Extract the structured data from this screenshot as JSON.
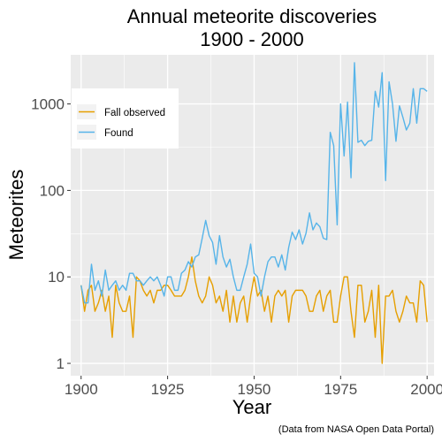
{
  "chart_data": {
    "type": "line",
    "title_line1": "Annual meteorite discoveries",
    "title_line2": "1900 - 2000",
    "xlabel": "Year",
    "ylabel": "Meteorites",
    "caption": "(Data from NASA Open Data Portal)",
    "xlim": [
      1897,
      2002
    ],
    "ylim": [
      0.72,
      3700
    ],
    "y_scale": "log10",
    "x_ticks": [
      1900,
      1925,
      1950,
      1975,
      2000
    ],
    "x_tick_labels": [
      "1900",
      "1925",
      "1950",
      "1975",
      "2000"
    ],
    "y_ticks": [
      1,
      10,
      100,
      1000
    ],
    "y_tick_labels": [
      "1",
      "10",
      "100",
      "1000"
    ],
    "grid": true,
    "panel_background": "#ebebeb",
    "legend": {
      "placement": "top-left"
    },
    "x": [
      1900,
      1901,
      1902,
      1903,
      1904,
      1905,
      1906,
      1907,
      1908,
      1909,
      1910,
      1911,
      1912,
      1913,
      1914,
      1915,
      1916,
      1917,
      1918,
      1919,
      1920,
      1921,
      1922,
      1923,
      1924,
      1925,
      1926,
      1927,
      1928,
      1929,
      1930,
      1931,
      1932,
      1933,
      1934,
      1935,
      1936,
      1937,
      1938,
      1939,
      1940,
      1941,
      1942,
      1943,
      1944,
      1945,
      1946,
      1947,
      1948,
      1949,
      1950,
      1951,
      1952,
      1953,
      1954,
      1955,
      1956,
      1957,
      1958,
      1959,
      1960,
      1961,
      1962,
      1963,
      1964,
      1965,
      1966,
      1967,
      1968,
      1969,
      1970,
      1971,
      1972,
      1973,
      1974,
      1975,
      1976,
      1977,
      1978,
      1979,
      1980,
      1981,
      1982,
      1983,
      1984,
      1985,
      1986,
      1987,
      1988,
      1989,
      1990,
      1991,
      1992,
      1993,
      1994,
      1995,
      1996,
      1997,
      1998,
      1999,
      2000
    ],
    "series": [
      {
        "name": "Fall observed",
        "color": "#e69f00",
        "values": [
          8,
          4,
          7,
          8,
          4,
          5,
          7,
          4,
          6,
          2,
          8,
          5,
          4,
          4,
          6,
          2,
          10,
          9,
          7,
          6,
          7,
          5,
          7,
          7,
          8,
          8,
          7,
          6,
          6,
          6,
          7,
          10,
          17,
          9,
          6,
          5,
          6,
          10,
          8,
          5,
          6,
          4,
          7,
          3,
          6,
          3,
          5,
          6,
          3,
          6,
          10,
          6,
          7,
          4,
          6,
          3,
          6,
          7,
          6,
          7,
          3,
          6,
          7,
          7,
          7,
          6,
          4,
          4,
          6,
          7,
          4,
          6,
          7,
          3,
          3,
          6,
          10,
          10,
          4,
          2,
          8,
          8,
          3,
          4,
          7,
          2,
          8,
          1,
          6,
          6,
          7,
          4,
          3,
          4,
          6,
          5,
          5,
          3,
          9,
          8,
          3
        ]
      },
      {
        "name": "Found",
        "color": "#56b4e9",
        "values": [
          8,
          5,
          5,
          14,
          7,
          9,
          6,
          12,
          7,
          8,
          9,
          7,
          8,
          7,
          11,
          11,
          9,
          9,
          8,
          9,
          10,
          9,
          10,
          8,
          6,
          10,
          10,
          7,
          7,
          11,
          12,
          15,
          13,
          17,
          18,
          28,
          45,
          30,
          25,
          14,
          30,
          17,
          13,
          16,
          10,
          7,
          7,
          10,
          14,
          24,
          11,
          10,
          6,
          10,
          15,
          17,
          17,
          13,
          18,
          12,
          22,
          33,
          27,
          35,
          24,
          32,
          55,
          35,
          42,
          38,
          28,
          27,
          470,
          330,
          40,
          1000,
          250,
          1050,
          140,
          3000,
          360,
          380,
          330,
          370,
          380,
          1400,
          920,
          2300,
          130,
          1800,
          1000,
          370,
          950,
          700,
          500,
          600,
          1500,
          600,
          1500,
          1500,
          1400
        ]
      }
    ]
  }
}
